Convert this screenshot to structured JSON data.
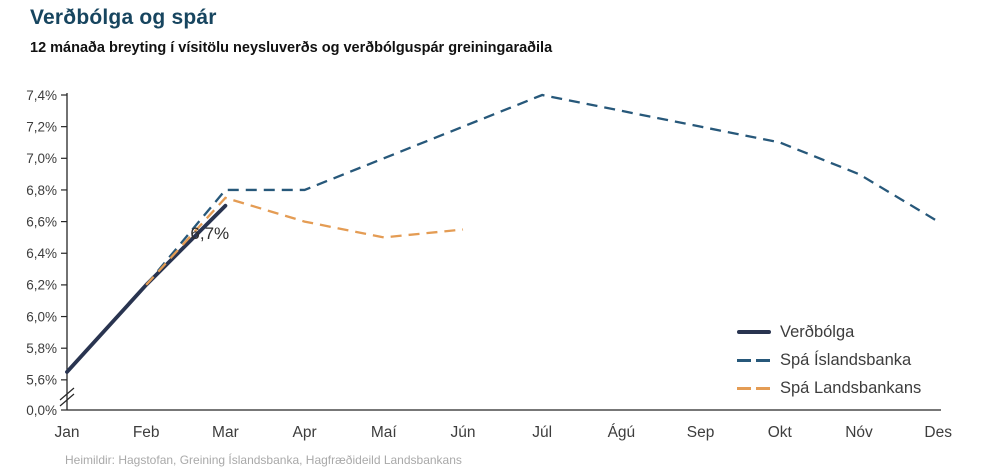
{
  "header": {
    "title": "Verðbólga og spár",
    "subtitle": "12 mánaða breyting í vísitölu neysluverðs og verðbólguspár greiningaraðila"
  },
  "colors": {
    "title": "#17455f",
    "axis": "#262626",
    "axis_text": "#3d3d3d",
    "annotation_text": "#2e2e2e",
    "source_text": "#a9a9a9",
    "inflation_line": "#293450",
    "islandsbanki_line": "#27587a",
    "landsbankinn_line": "#e49c54"
  },
  "chart_data": {
    "type": "line",
    "title": "Verðbólga og spár",
    "subtitle": "12 mánaða breyting í vísitölu neysluverðs og verðbólguspár greiningaraðila",
    "categories": [
      "Jan",
      "Feb",
      "Mar",
      "Apr",
      "Maí",
      "Jún",
      "Júl",
      "Ágú",
      "Sep",
      "Okt",
      "Nóv",
      "Des"
    ],
    "y_axis": {
      "unit": "%",
      "has_break": true,
      "break_between": [
        0.0,
        5.6
      ],
      "ticks": [
        {
          "value": 7.4,
          "label": "7,4%"
        },
        {
          "value": 7.2,
          "label": "7,2%"
        },
        {
          "value": 7.0,
          "label": "7,0%"
        },
        {
          "value": 6.8,
          "label": "6,8%"
        },
        {
          "value": 6.6,
          "label": "6,6%"
        },
        {
          "value": 6.4,
          "label": "6,4%"
        },
        {
          "value": 6.2,
          "label": "6,2%"
        },
        {
          "value": 6.0,
          "label": "6,0%"
        },
        {
          "value": 5.8,
          "label": "5,8%"
        },
        {
          "value": 5.6,
          "label": "5,6%"
        },
        {
          "value": 0.0,
          "label": "0,0%"
        }
      ]
    },
    "grid": false,
    "legend_position": "right-middle",
    "series": [
      {
        "name": "Verðbólga",
        "style": "solid",
        "color": "#293450",
        "values": [
          5.65,
          6.2,
          6.7,
          null,
          null,
          null,
          null,
          null,
          null,
          null,
          null,
          null
        ]
      },
      {
        "name": "Spá Íslandsbanka",
        "style": "dashed",
        "color": "#27587a",
        "values": [
          null,
          6.2,
          6.8,
          6.8,
          7.0,
          7.2,
          7.4,
          7.3,
          7.2,
          7.1,
          6.9,
          6.6
        ]
      },
      {
        "name": "Spá Landsbankans",
        "style": "dashed",
        "color": "#e49c54",
        "values": [
          null,
          6.2,
          6.75,
          6.6,
          6.5,
          6.55,
          null,
          null,
          null,
          null,
          null,
          null
        ]
      }
    ],
    "annotation": {
      "text": "6,7%",
      "x_month": "Mar",
      "value": 6.7,
      "series": "Verðbólga"
    }
  },
  "footer": {
    "source": "Heimildir: Hagstofan, Greining Íslandsbanka, Hagfræðideild Landsbankans"
  }
}
